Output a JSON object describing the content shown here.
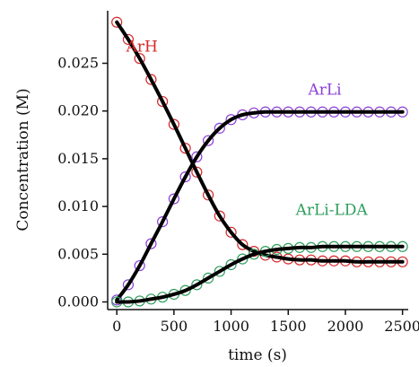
{
  "chart_data": {
    "type": "line",
    "title": "",
    "xlabel": "time (s)",
    "ylabel": "Concentration (M)",
    "xlim": [
      -80,
      2550
    ],
    "ylim": [
      -0.0008,
      0.0305
    ],
    "x_ticks": [
      0,
      500,
      1000,
      1500,
      2000,
      2500
    ],
    "y_ticks": [
      0.0,
      0.005,
      0.01,
      0.015,
      0.02,
      0.025
    ],
    "x_tick_labels": [
      "0",
      "500",
      "1000",
      "1500",
      "2000",
      "2500"
    ],
    "y_tick_labels": [
      "0.000",
      "0.005",
      "0.010",
      "0.015",
      "0.020",
      "0.025"
    ],
    "grid": false,
    "legend": "none",
    "fit_color": "#000000",
    "series": [
      {
        "name": "ArH",
        "label_x": 220,
        "label_y": 0.0262,
        "color": "#d62728",
        "marker": "open-circle",
        "x": [
          0,
          100,
          200,
          300,
          400,
          500,
          600,
          700,
          800,
          900,
          1000,
          1100,
          1200,
          1300,
          1400,
          1500,
          1600,
          1700,
          1800,
          1900,
          2000,
          2100,
          2200,
          2300,
          2400,
          2500
        ],
        "values": [
          0.0293,
          0.0275,
          0.0255,
          0.0233,
          0.021,
          0.0186,
          0.0161,
          0.0136,
          0.0112,
          0.009,
          0.0073,
          0.006,
          0.0053,
          0.0049,
          0.0047,
          0.0045,
          0.0044,
          0.0044,
          0.0043,
          0.0043,
          0.0043,
          0.0042,
          0.0042,
          0.0042,
          0.0042,
          0.0042
        ]
      },
      {
        "name": "ArLi",
        "label_x": 1820,
        "label_y": 0.0217,
        "color": "#8b3fd9",
        "marker": "open-circle",
        "x": [
          0,
          100,
          200,
          300,
          400,
          500,
          600,
          700,
          800,
          900,
          1000,
          1100,
          1200,
          1300,
          1400,
          1500,
          1600,
          1700,
          1800,
          1900,
          2000,
          2100,
          2200,
          2300,
          2400,
          2500
        ],
        "values": [
          0.0002,
          0.0018,
          0.0038,
          0.0061,
          0.0084,
          0.0108,
          0.0131,
          0.0152,
          0.0169,
          0.0182,
          0.0191,
          0.0196,
          0.0198,
          0.0199,
          0.0199,
          0.0199,
          0.0199,
          0.0199,
          0.0199,
          0.0199,
          0.0199,
          0.0199,
          0.0199,
          0.0199,
          0.0199,
          0.0199
        ]
      },
      {
        "name": "ArLi-LDA",
        "label_x": 1880,
        "label_y": 0.0091,
        "color": "#2e9e5e",
        "marker": "open-circle",
        "x": [
          0,
          100,
          200,
          300,
          400,
          500,
          600,
          700,
          800,
          900,
          1000,
          1100,
          1200,
          1300,
          1400,
          1500,
          1600,
          1700,
          1800,
          1900,
          2000,
          2100,
          2200,
          2300,
          2400,
          2500
        ],
        "values": [
          0.0,
          0.0,
          0.0001,
          0.0003,
          0.0005,
          0.0008,
          0.0012,
          0.0018,
          0.0025,
          0.0032,
          0.0039,
          0.0045,
          0.005,
          0.0053,
          0.0055,
          0.0056,
          0.0057,
          0.0057,
          0.0058,
          0.0058,
          0.0058,
          0.0058,
          0.0058,
          0.0058,
          0.0058,
          0.0058
        ]
      }
    ]
  }
}
